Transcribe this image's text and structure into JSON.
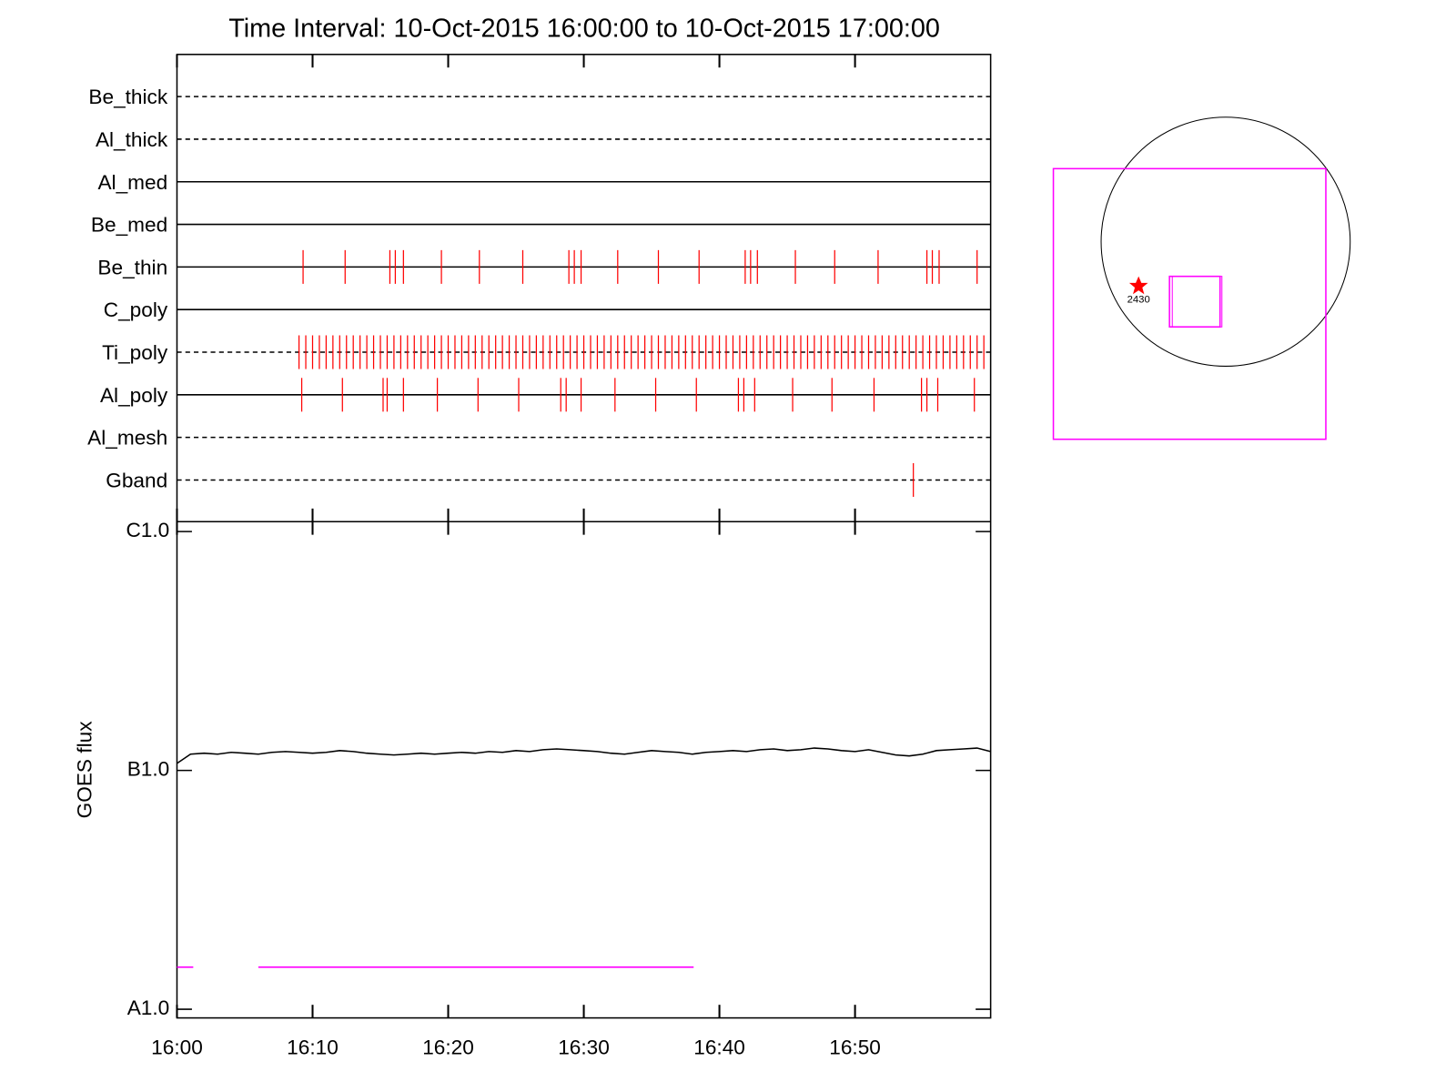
{
  "chart_data": [
    {
      "type": "exposure-timeline",
      "title": "Time Interval: 10-Oct-2015 16:00:00 to 10-Oct-2015 17:00:00",
      "xlim": [
        0,
        60
      ],
      "mark_color": "#ff0000",
      "filters": [
        {
          "name": "Be_thick",
          "line": "dashed",
          "exposures": []
        },
        {
          "name": "Al_thick",
          "line": "dashed",
          "exposures": []
        },
        {
          "name": "Al_med",
          "line": "solid",
          "exposures": []
        },
        {
          "name": "Be_med",
          "line": "solid",
          "exposures": []
        },
        {
          "name": "Be_thin",
          "line": "solid",
          "exposures": [
            9.3,
            12.4,
            15.7,
            16.1,
            16.7,
            19.5,
            22.3,
            25.5,
            28.9,
            29.3,
            29.8,
            32.5,
            35.5,
            38.5,
            41.9,
            42.3,
            42.8,
            45.6,
            48.5,
            51.7,
            55.3,
            55.7,
            56.2,
            59.0
          ]
        },
        {
          "name": "C_poly",
          "line": "solid",
          "exposures": []
        },
        {
          "name": "Ti_poly",
          "line": "dashed",
          "exposures": [
            9.0,
            9.5,
            10.0,
            10.5,
            11.0,
            11.5,
            12.0,
            12.5,
            13.0,
            13.5,
            14.0,
            14.5,
            15.0,
            15.5,
            16.0,
            16.5,
            17.0,
            17.5,
            18.0,
            18.5,
            19.0,
            19.5,
            20.0,
            20.5,
            21.0,
            21.5,
            22.0,
            22.5,
            23.0,
            23.5,
            24.0,
            24.5,
            25.0,
            25.5,
            26.0,
            26.5,
            27.0,
            27.5,
            28.0,
            28.5,
            29.0,
            29.5,
            30.0,
            30.5,
            31.0,
            31.5,
            32.0,
            32.5,
            33.0,
            33.5,
            34.0,
            34.5,
            35.0,
            35.5,
            36.0,
            36.5,
            37.0,
            37.5,
            38.0,
            38.5,
            39.0,
            39.5,
            40.0,
            40.5,
            41.0,
            41.5,
            42.0,
            42.5,
            43.0,
            43.5,
            44.0,
            44.5,
            45.0,
            45.5,
            46.0,
            46.5,
            47.0,
            47.5,
            48.0,
            48.5,
            49.0,
            49.5,
            50.0,
            50.5,
            51.0,
            51.5,
            52.0,
            52.5,
            53.0,
            53.5,
            54.0,
            54.5,
            55.0,
            55.5,
            56.0,
            56.5,
            57.0,
            57.5,
            58.0,
            58.5,
            59.0,
            59.5
          ]
        },
        {
          "name": "Al_poly",
          "line": "solid",
          "exposures": [
            9.2,
            12.2,
            15.2,
            15.5,
            16.7,
            19.2,
            22.2,
            25.2,
            28.3,
            28.7,
            29.8,
            32.3,
            35.3,
            38.3,
            41.4,
            41.8,
            42.6,
            45.4,
            48.3,
            51.4,
            54.9,
            55.3,
            56.1,
            58.8
          ]
        },
        {
          "name": "Al_mesh",
          "line": "dashed",
          "exposures": []
        },
        {
          "name": "Gband",
          "line": "dashed",
          "exposures": [
            54.3
          ]
        }
      ]
    },
    {
      "type": "line",
      "ylabel": "GOES flux",
      "yscale": "log",
      "xlim": [
        0,
        60
      ],
      "xticks": [
        {
          "value": 0,
          "label": "16:00"
        },
        {
          "value": 10,
          "label": "16:10"
        },
        {
          "value": 20,
          "label": "16:20"
        },
        {
          "value": 30,
          "label": "16:30"
        },
        {
          "value": 40,
          "label": "16:40"
        },
        {
          "value": 50,
          "label": "16:50"
        }
      ],
      "ylim": [
        9.2e-09,
        1.1e-06
      ],
      "yticks": [
        {
          "value": 1e-08,
          "label": "A1.0"
        },
        {
          "value": 1e-07,
          "label": "B1.0"
        },
        {
          "value": 1e-06,
          "label": "C1.0"
        }
      ],
      "series": [
        {
          "color": "#000000",
          "x": [
            0,
            1,
            2,
            3,
            4,
            5,
            6,
            7,
            8,
            9,
            10,
            11,
            12,
            13,
            14,
            15,
            16,
            17,
            18,
            19,
            20,
            21,
            22,
            23,
            24,
            25,
            26,
            27,
            28,
            29,
            30,
            31,
            32,
            33,
            34,
            35,
            36,
            37,
            38,
            39,
            40,
            41,
            42,
            43,
            44,
            45,
            46,
            47,
            48,
            49,
            50,
            51,
            52,
            53,
            54,
            55,
            56,
            57,
            58,
            59,
            60
          ],
          "values": [
            1.07e-07,
            1.17e-07,
            1.18e-07,
            1.17e-07,
            1.19e-07,
            1.18e-07,
            1.17e-07,
            1.19e-07,
            1.2e-07,
            1.19e-07,
            1.18e-07,
            1.19e-07,
            1.21e-07,
            1.2e-07,
            1.18e-07,
            1.17e-07,
            1.16e-07,
            1.17e-07,
            1.18e-07,
            1.17e-07,
            1.18e-07,
            1.19e-07,
            1.18e-07,
            1.2e-07,
            1.19e-07,
            1.21e-07,
            1.2e-07,
            1.22e-07,
            1.23e-07,
            1.22e-07,
            1.21e-07,
            1.2e-07,
            1.18e-07,
            1.17e-07,
            1.19e-07,
            1.21e-07,
            1.2e-07,
            1.19e-07,
            1.17e-07,
            1.19e-07,
            1.2e-07,
            1.21e-07,
            1.2e-07,
            1.22e-07,
            1.23e-07,
            1.21e-07,
            1.22e-07,
            1.24e-07,
            1.23e-07,
            1.21e-07,
            1.2e-07,
            1.22e-07,
            1.19e-07,
            1.16e-07,
            1.15e-07,
            1.17e-07,
            1.21e-07,
            1.22e-07,
            1.23e-07,
            1.24e-07,
            1.2e-07
          ]
        },
        {
          "color": "#ff00ff",
          "x": [
            0,
            1.2,
            3.6,
            6.0,
            38.1
          ],
          "values": [
            1.5e-08,
            1.5e-08,
            null,
            1.5e-08,
            1.5e-08
          ]
        }
      ]
    }
  ],
  "context_map": {
    "active_region": "2430"
  }
}
